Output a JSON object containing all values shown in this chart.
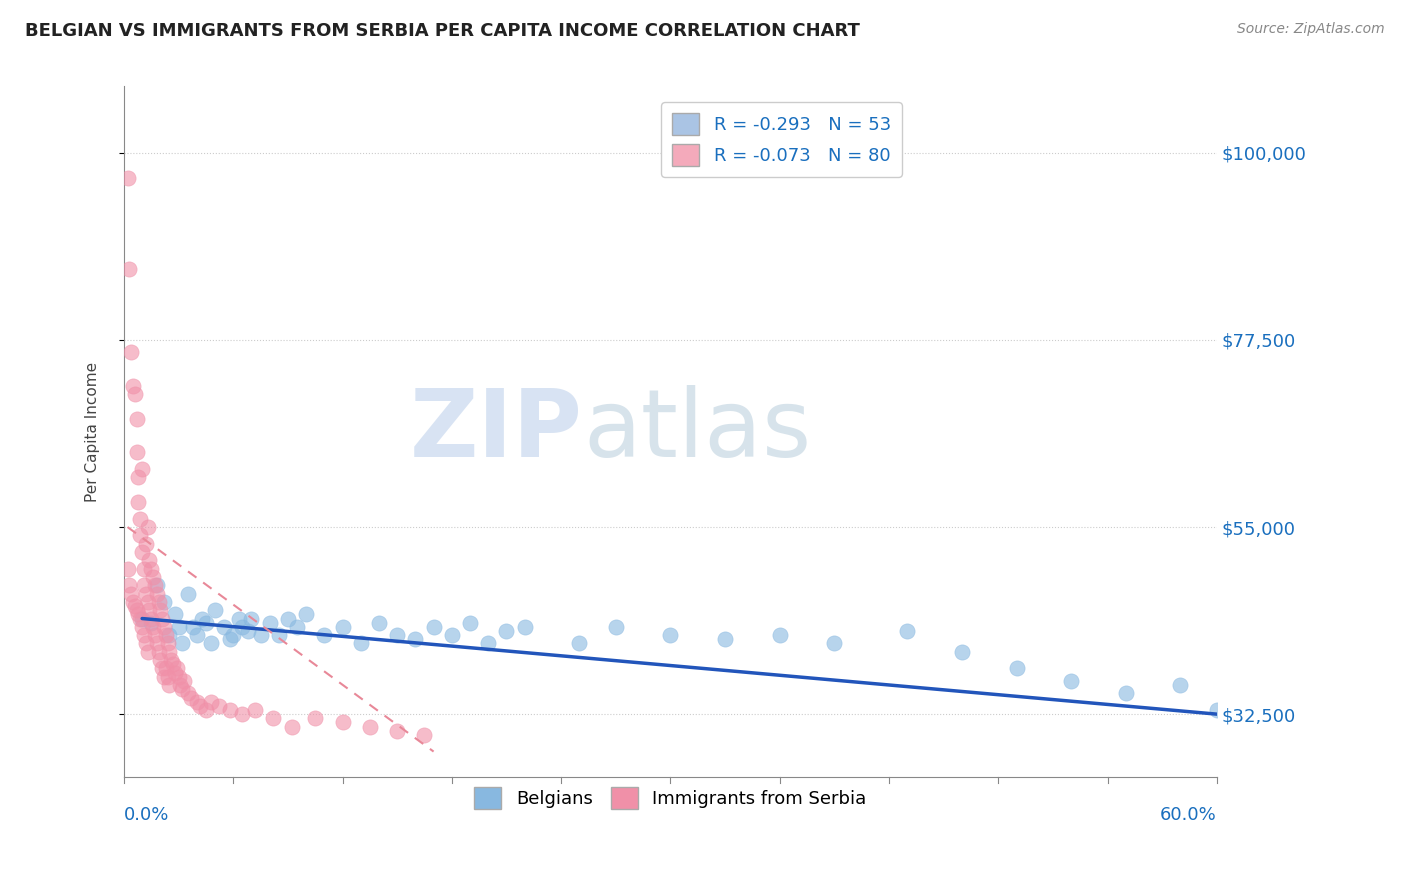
{
  "title": "BELGIAN VS IMMIGRANTS FROM SERBIA PER CAPITA INCOME CORRELATION CHART",
  "source": "Source: ZipAtlas.com",
  "ylabel": "Per Capita Income",
  "yticks": [
    32500,
    55000,
    77500,
    100000
  ],
  "ytick_labels": [
    "$32,500",
    "$55,000",
    "$77,500",
    "$100,000"
  ],
  "xlim": [
    0.0,
    0.6
  ],
  "ylim": [
    25000,
    108000
  ],
  "legend_entries": [
    {
      "label": "R = -0.293   N = 53",
      "color": "#aac4e4"
    },
    {
      "label": "R = -0.073   N = 80",
      "color": "#f4aabb"
    }
  ],
  "legend_bottom": [
    "Belgians",
    "Immigrants from Serbia"
  ],
  "belgian_color": "#88b8e0",
  "serbia_color": "#f090a8",
  "trend_belgian_color": "#2255bb",
  "trend_serbia_color": "#e88898",
  "watermark_zip": "ZIP",
  "watermark_atlas": "atlas",
  "belgians_x": [
    0.01,
    0.015,
    0.018,
    0.022,
    0.025,
    0.028,
    0.03,
    0.032,
    0.035,
    0.038,
    0.04,
    0.043,
    0.045,
    0.048,
    0.05,
    0.055,
    0.058,
    0.06,
    0.063,
    0.065,
    0.068,
    0.07,
    0.075,
    0.08,
    0.085,
    0.09,
    0.095,
    0.1,
    0.11,
    0.12,
    0.13,
    0.14,
    0.15,
    0.16,
    0.17,
    0.18,
    0.19,
    0.2,
    0.21,
    0.22,
    0.25,
    0.27,
    0.3,
    0.33,
    0.36,
    0.39,
    0.43,
    0.46,
    0.49,
    0.52,
    0.55,
    0.58,
    0.6
  ],
  "belgians_y": [
    44000,
    43500,
    48000,
    46000,
    42000,
    44500,
    43000,
    41000,
    47000,
    43000,
    42000,
    44000,
    43500,
    41000,
    45000,
    43000,
    41500,
    42000,
    44000,
    43000,
    42500,
    44000,
    42000,
    43500,
    42000,
    44000,
    43000,
    44500,
    42000,
    43000,
    41000,
    43500,
    42000,
    41500,
    43000,
    42000,
    43500,
    41000,
    42500,
    43000,
    41000,
    43000,
    42000,
    41500,
    42000,
    41000,
    42500,
    40000,
    38000,
    36500,
    35000,
    36000,
    33000
  ],
  "serbia_x": [
    0.002,
    0.003,
    0.004,
    0.005,
    0.006,
    0.007,
    0.007,
    0.008,
    0.008,
    0.009,
    0.009,
    0.01,
    0.01,
    0.011,
    0.011,
    0.012,
    0.012,
    0.013,
    0.013,
    0.014,
    0.014,
    0.015,
    0.015,
    0.016,
    0.016,
    0.017,
    0.017,
    0.018,
    0.018,
    0.019,
    0.019,
    0.02,
    0.02,
    0.021,
    0.021,
    0.022,
    0.022,
    0.023,
    0.023,
    0.024,
    0.024,
    0.025,
    0.025,
    0.026,
    0.027,
    0.028,
    0.029,
    0.03,
    0.031,
    0.032,
    0.033,
    0.035,
    0.037,
    0.04,
    0.042,
    0.045,
    0.048,
    0.052,
    0.058,
    0.065,
    0.072,
    0.082,
    0.092,
    0.105,
    0.12,
    0.135,
    0.15,
    0.165,
    0.002,
    0.003,
    0.004,
    0.005,
    0.006,
    0.007,
    0.008,
    0.009,
    0.01,
    0.011,
    0.012,
    0.013
  ],
  "serbia_y": [
    97000,
    86000,
    76000,
    72000,
    71000,
    68000,
    64000,
    61000,
    58000,
    56000,
    54000,
    62000,
    52000,
    50000,
    48000,
    53000,
    47000,
    55000,
    46000,
    45000,
    51000,
    44000,
    50000,
    43000,
    49000,
    48000,
    42000,
    47000,
    41000,
    46000,
    40000,
    45000,
    39000,
    44000,
    38000,
    43000,
    37000,
    42000,
    38000,
    41000,
    37000,
    40000,
    36000,
    39000,
    38500,
    37500,
    38000,
    37000,
    36000,
    35500,
    36500,
    35000,
    34500,
    34000,
    33500,
    33000,
    34000,
    33500,
    33000,
    32500,
    33000,
    32000,
    31000,
    32000,
    31500,
    31000,
    30500,
    30000,
    50000,
    48000,
    47000,
    46000,
    45500,
    45000,
    44500,
    44000,
    43000,
    42000,
    41000,
    40000
  ],
  "serbia_trend_x": [
    0.002,
    0.17
  ],
  "serbia_trend_y": [
    55000,
    28000
  ],
  "belgian_trend_x": [
    0.01,
    0.6
  ],
  "belgian_trend_y": [
    44000,
    32500
  ]
}
